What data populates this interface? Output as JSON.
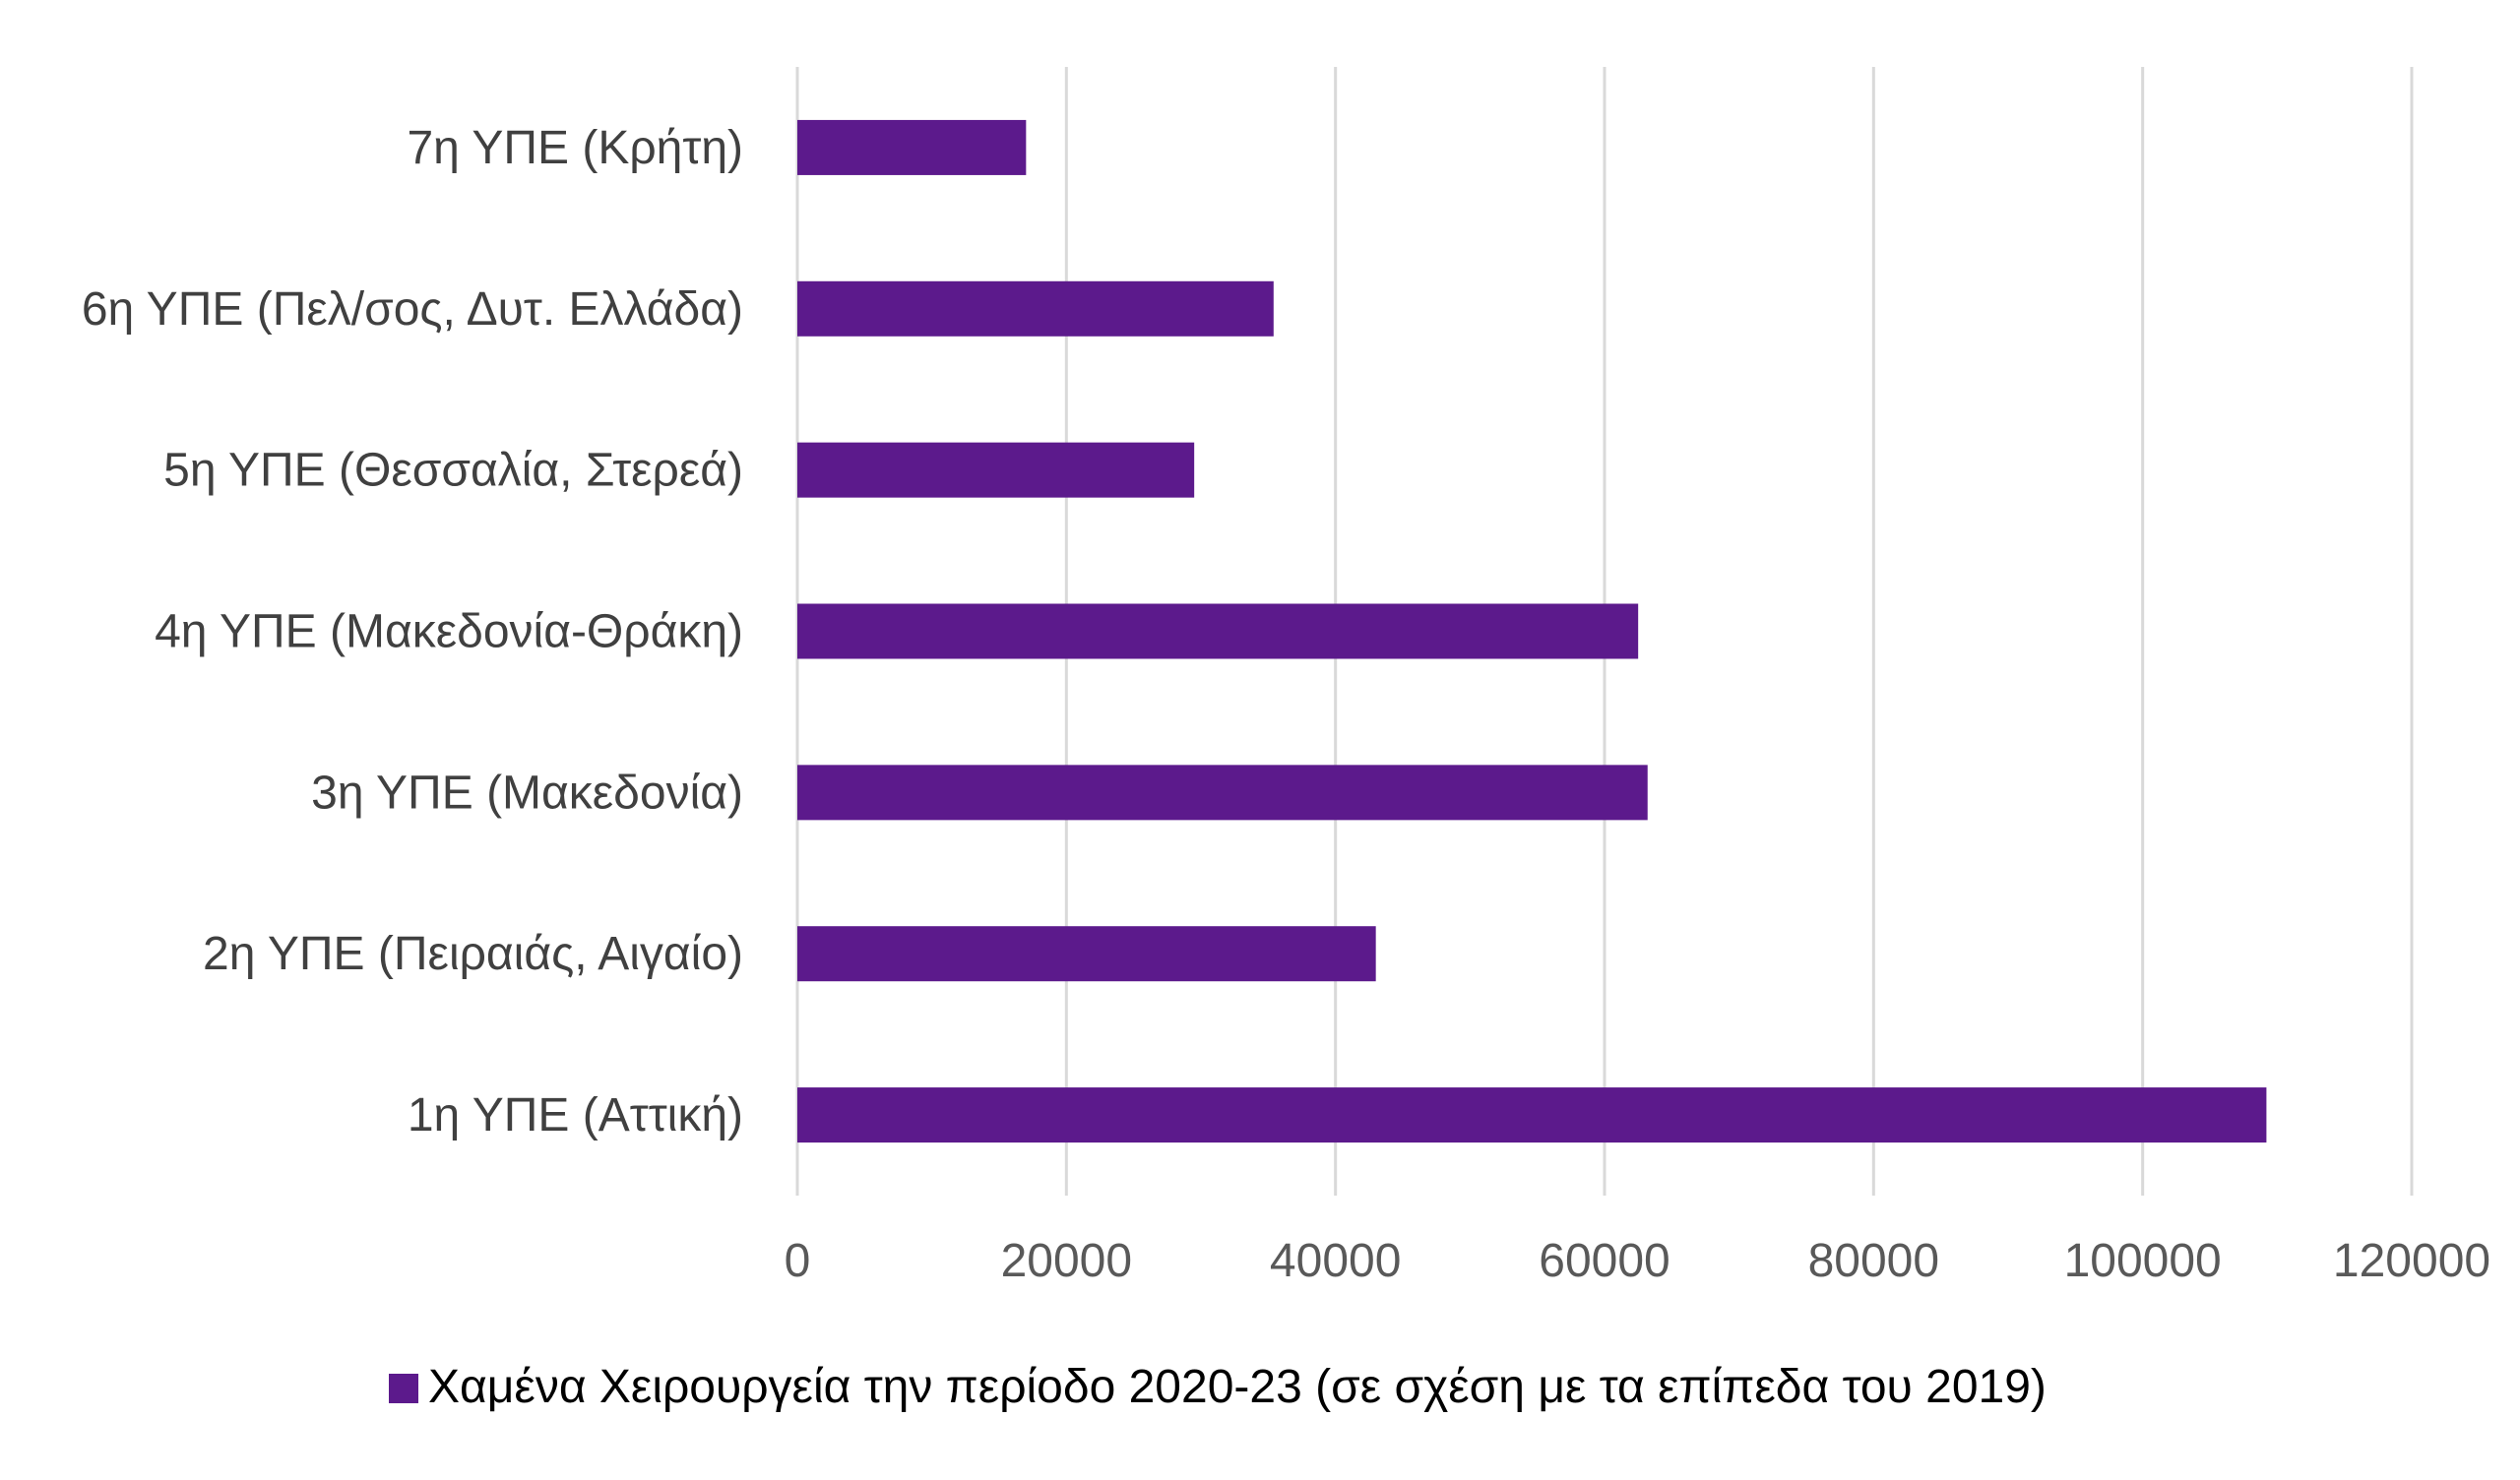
{
  "chart_data": {
    "type": "bar",
    "orientation": "horizontal",
    "categories": [
      "7η ΥΠΕ (Κρήτη)",
      "6η ΥΠΕ (Πελ/σος, Δυτ. Ελλάδα)",
      "5η ΥΠΕ (Θεσσαλία, Στερεά)",
      "4η ΥΠΕ (Μακεδονία-Θράκη)",
      "3η ΥΠΕ (Μακεδονία)",
      "2η ΥΠΕ (Πειραιάς, Αιγαίο)",
      "1η ΥΠΕ (Αττική)"
    ],
    "series": [
      {
        "name": "Χαμένα Χειρουργεία την περίοδο 2020-23 (σε σχέση με τα επίπεδα του 2019)",
        "color": "#5c1a8c",
        "values": [
          17000,
          35400,
          29500,
          62500,
          63200,
          43000,
          109200
        ]
      }
    ],
    "xlim": [
      0,
      120000
    ],
    "xticks": [
      0,
      20000,
      40000,
      60000,
      80000,
      100000,
      120000
    ],
    "xtick_labels": [
      "0",
      "20000",
      "40000",
      "60000",
      "80000",
      "100000",
      "120000"
    ],
    "grid": "vertical",
    "legend_position": "bottom",
    "title": "",
    "xlabel": "",
    "ylabel": ""
  },
  "colors": {
    "bar": "#5c1a8c",
    "grid": "#d9d9d9",
    "axis": "#d9d9d9"
  }
}
